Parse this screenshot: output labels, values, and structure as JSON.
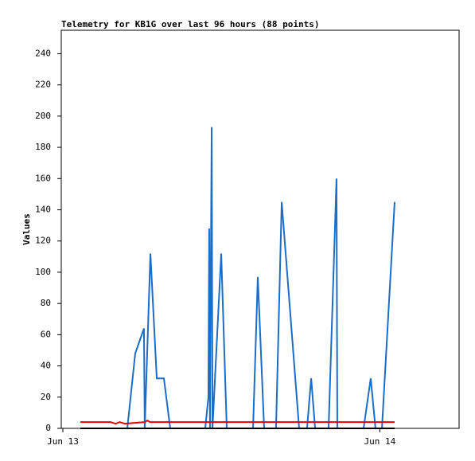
{
  "chart_data": {
    "type": "line",
    "title": "Telemetry for KB1G over last 96 hours (88 points)",
    "y_label": "Values",
    "xlim": [
      -0.12,
      30
    ],
    "xticks": [
      {
        "value": 0,
        "label": "Jun 13"
      },
      {
        "value": 24,
        "label": "Jun 14"
      }
    ],
    "ylim": [
      0,
      255
    ],
    "yticks": [
      0,
      20,
      40,
      60,
      80,
      100,
      120,
      140,
      160,
      180,
      200,
      220,
      240
    ],
    "grid": false,
    "series": [
      {
        "color": "#1a6ec8",
        "x": [
          4.88,
          5.48,
          6.14,
          6.2,
          6.63,
          7.11,
          7.65,
          8.13,
          10.78,
          11.02,
          11.08,
          11.14,
          11.2,
          11.27,
          11.33,
          11.99,
          12.41,
          14.4,
          14.76,
          15.24,
          16.14,
          16.57,
          17.89,
          18.49,
          18.8,
          19.1,
          20.12,
          20.72,
          20.78,
          22.77,
          23.31,
          23.67,
          24.16,
          25.12
        ],
        "values": [
          0,
          48,
          64,
          0,
          112,
          32,
          32,
          0,
          0,
          20,
          128,
          0,
          97,
          193,
          0,
          112,
          0,
          0,
          97,
          0,
          0,
          145,
          0,
          0,
          32,
          0,
          0,
          160,
          0,
          0,
          32,
          0,
          0,
          145
        ]
      },
      {
        "color": "#e00000",
        "x": [
          1.33,
          3.6,
          4.0,
          4.3,
          4.7,
          6.2,
          6.4,
          6.6,
          25.12
        ],
        "values": [
          4,
          4,
          3,
          4,
          3,
          4,
          5,
          4,
          4
        ]
      },
      {
        "color": "#000000",
        "x": [
          1.33,
          25.12
        ],
        "values": [
          0,
          0
        ]
      }
    ]
  }
}
